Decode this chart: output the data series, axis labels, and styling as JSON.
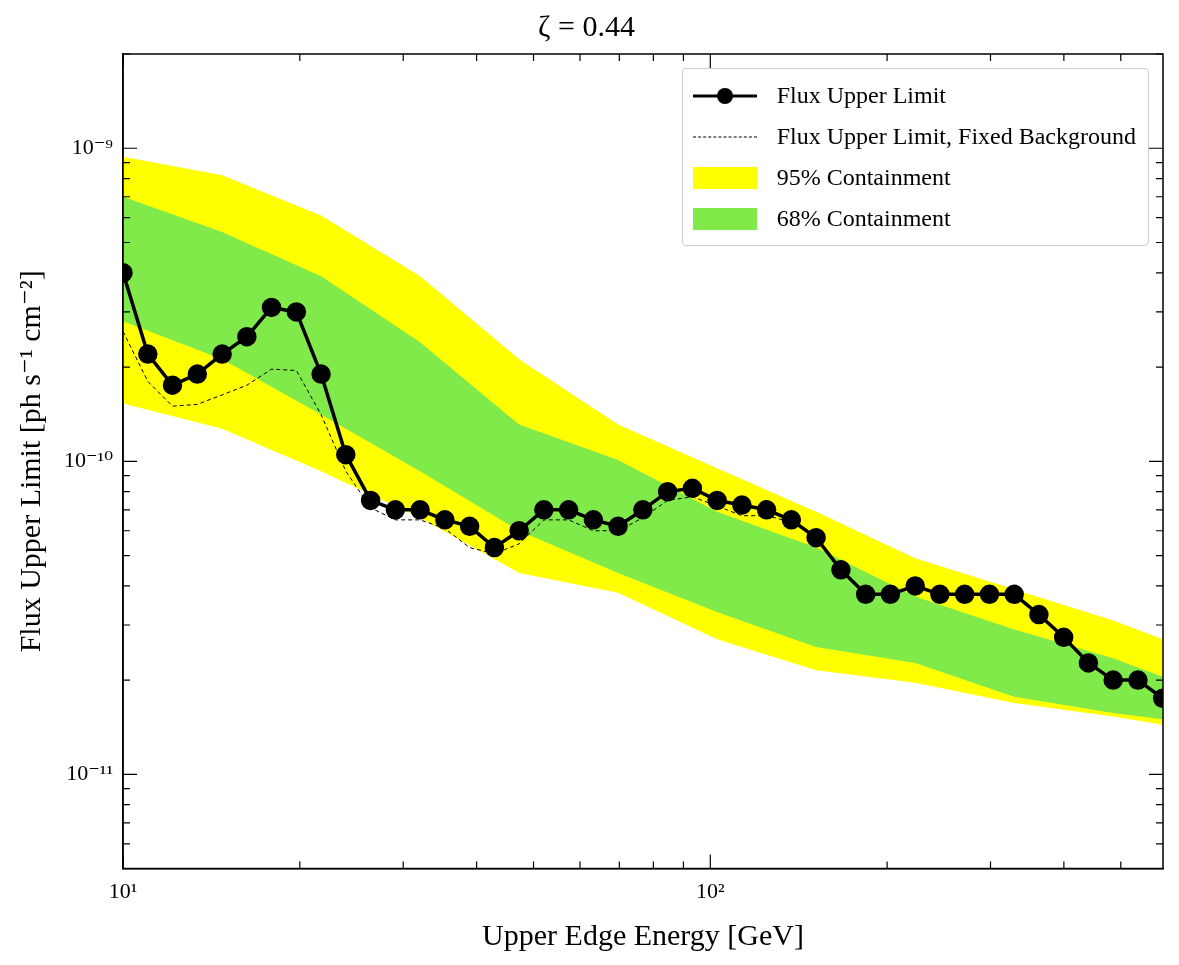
{
  "chart_data": {
    "type": "line",
    "title": "ζ = 0.44",
    "xlabel": "Upper Edge Energy [GeV]",
    "ylabel": "Flux Upper Limit [ph s⁻¹ cm⁻²]",
    "log": "xy",
    "legend": "top right",
    "xlim": [
      10,
      590
    ],
    "ylim": [
      5e-12,
      2e-09
    ],
    "xticks": [
      {
        "value": 10,
        "label": "10¹"
      },
      {
        "value": 20,
        "label": null
      },
      {
        "value": 30,
        "label": null
      },
      {
        "value": 40,
        "label": null
      },
      {
        "value": 50,
        "label": null
      },
      {
        "value": 60,
        "label": null
      },
      {
        "value": 70,
        "label": null
      },
      {
        "value": 80,
        "label": null
      },
      {
        "value": 90,
        "label": null
      },
      {
        "value": 100,
        "label": "10²"
      },
      {
        "value": 200,
        "label": null
      },
      {
        "value": 300,
        "label": null
      },
      {
        "value": 400,
        "label": null
      },
      {
        "value": 500,
        "label": null
      }
    ],
    "yticks": [
      {
        "value": 6e-12,
        "label": null
      },
      {
        "value": 7e-12,
        "label": null
      },
      {
        "value": 8e-12,
        "label": null
      },
      {
        "value": 9e-12,
        "label": null
      },
      {
        "value": 1e-11,
        "label": "10⁻¹¹"
      },
      {
        "value": 2e-11,
        "label": null
      },
      {
        "value": 3e-11,
        "label": null
      },
      {
        "value": 4e-11,
        "label": null
      },
      {
        "value": 5e-11,
        "label": null
      },
      {
        "value": 6e-11,
        "label": null
      },
      {
        "value": 7e-11,
        "label": null
      },
      {
        "value": 8e-11,
        "label": null
      },
      {
        "value": 9e-11,
        "label": null
      },
      {
        "value": 1e-10,
        "label": "10⁻¹⁰"
      },
      {
        "value": 2e-10,
        "label": null
      },
      {
        "value": 3e-10,
        "label": null
      },
      {
        "value": 4e-10,
        "label": null
      },
      {
        "value": 5e-10,
        "label": null
      },
      {
        "value": 6e-10,
        "label": null
      },
      {
        "value": 7e-10,
        "label": null
      },
      {
        "value": 8e-10,
        "label": null
      },
      {
        "value": 9e-10,
        "label": null
      },
      {
        "value": 1e-09,
        "label": "10⁻⁹"
      },
      {
        "value": 2e-09,
        "label": null
      }
    ],
    "x": [
      10,
      11.02,
      12.14,
      13.38,
      14.75,
      16.25,
      17.9,
      19.73,
      21.74,
      23.95,
      26.4,
      29.09,
      32.05,
      35.32,
      38.92,
      42.89,
      47.26,
      52.07,
      57.38,
      63.23,
      69.66,
      76.77,
      84.59,
      93.21,
      102.7,
      113.2,
      124.7,
      137.4,
      151.4,
      166.9,
      183.9,
      202.6,
      223.3,
      246,
      271.1,
      298.8,
      329.2,
      362.7,
      399.7,
      440.4,
      485.3,
      534.8,
      589.3
    ],
    "series": [
      {
        "name": "Flux Upper Limit",
        "color": "#000000",
        "marker": "circle",
        "line_style": "solid",
        "values": [
          4e-10,
          2.2e-10,
          1.75e-10,
          1.9e-10,
          2.2e-10,
          2.5e-10,
          3.1e-10,
          3e-10,
          1.9e-10,
          1.05e-10,
          7.5e-11,
          7e-11,
          7e-11,
          6.5e-11,
          6.2e-11,
          5.3e-11,
          6e-11,
          7e-11,
          7e-11,
          6.5e-11,
          6.2e-11,
          7e-11,
          8e-11,
          8.2e-11,
          7.5e-11,
          7.25e-11,
          7e-11,
          6.5e-11,
          5.7e-11,
          4.5e-11,
          3.76e-11,
          3.76e-11,
          4e-11,
          3.76e-11,
          3.76e-11,
          3.76e-11,
          3.76e-11,
          3.24e-11,
          2.74e-11,
          2.27e-11,
          2e-11,
          2e-11,
          1.75e-11
        ]
      },
      {
        "name": "Flux Upper Limit, Fixed Background",
        "color": "#000000",
        "marker": "none",
        "line_style": "dashed",
        "values": [
          2.6e-10,
          1.8e-10,
          1.5e-10,
          1.52e-10,
          1.63e-10,
          1.75e-10,
          1.97e-10,
          1.95e-10,
          1.41e-10,
          9.3e-11,
          7.1e-11,
          6.5e-11,
          6.5e-11,
          6.1e-11,
          5.3e-11,
          5.07e-11,
          5.45e-11,
          6.5e-11,
          6.5e-11,
          6e-11,
          6e-11,
          6.6e-11,
          7.5e-11,
          7.7e-11,
          7.2e-11,
          6.7e-11,
          6.7e-11,
          6.4e-11,
          5.8e-11,
          4.5e-11,
          3.76e-11,
          3.76e-11,
          4e-11,
          3.76e-11,
          3.76e-11,
          3.76e-11,
          3.7e-11,
          3.24e-11,
          2.74e-11,
          2.27e-11,
          2e-11,
          2e-11,
          1.75e-11
        ]
      },
      {
        "name": "95% Containment",
        "type": "area",
        "color": "#ffff00",
        "x": [
          10,
          14.75,
          21.74,
          32.05,
          47.26,
          69.66,
          102.7,
          151.4,
          223.3,
          329.2,
          485.3,
          589.3
        ],
        "values": [
          null,
          null,
          null,
          null,
          null,
          null,
          null,
          null,
          null,
          null,
          null,
          null
        ],
        "lower": [
          1.53e-10,
          1.27e-10,
          9.3e-11,
          6.6e-11,
          4.4e-11,
          3.8e-11,
          2.7e-11,
          2.15e-11,
          1.96e-11,
          1.69e-11,
          1.53e-11,
          1.44e-11
        ],
        "upper": [
          9.4e-10,
          8.2e-10,
          6.1e-10,
          3.9e-10,
          2.12e-10,
          1.31e-10,
          9.5e-11,
          6.9e-11,
          4.9e-11,
          3.9e-11,
          3.1e-11,
          2.7e-11
        ]
      },
      {
        "name": "68% Containment",
        "type": "area",
        "color": "#7fea4a",
        "x": [
          10,
          14.75,
          21.74,
          32.05,
          47.26,
          69.66,
          102.7,
          151.4,
          223.3,
          329.2,
          485.3,
          589.3
        ],
        "values": [
          null,
          null,
          null,
          null,
          null,
          null,
          null,
          null,
          null,
          null,
          null,
          null
        ],
        "lower": [
          2.8e-10,
          2.12e-10,
          1.41e-10,
          9.3e-11,
          6e-11,
          4.4e-11,
          3.3e-11,
          2.55e-11,
          2.27e-11,
          1.77e-11,
          1.57e-11,
          1.5e-11
        ],
        "upper": [
          7e-10,
          5.4e-10,
          3.9e-10,
          2.4e-10,
          1.31e-10,
          1.01e-10,
          6.9e-11,
          5.3e-11,
          3.7e-11,
          2.9e-11,
          2.35e-11,
          2.05e-11
        ]
      }
    ]
  }
}
